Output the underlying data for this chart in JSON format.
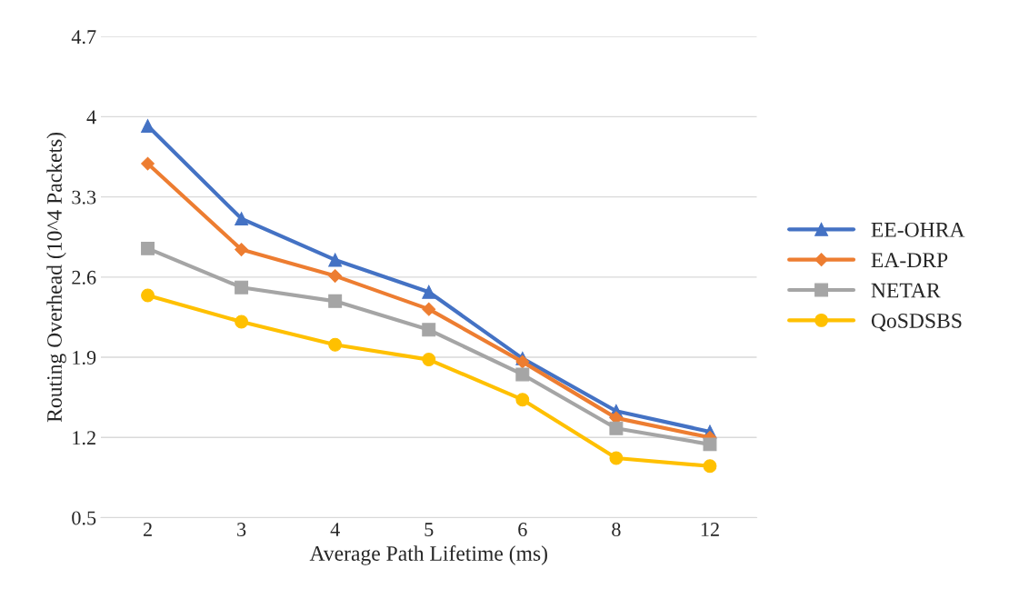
{
  "chart_data": {
    "type": "line",
    "xlabel": "Average Path Lifetime (ms)",
    "ylabel": "Routing Overhead (10^4 Packets)",
    "categories": [
      "2",
      "3",
      "4",
      "5",
      "6",
      "8",
      "12"
    ],
    "series": [
      {
        "name": "EE-OHRA",
        "color": "#4472c4",
        "marker": "triangle",
        "values": [
          3.92,
          3.11,
          2.75,
          2.47,
          1.89,
          1.43,
          1.25
        ]
      },
      {
        "name": "EA-DRP",
        "color": "#ed7d31",
        "marker": "diamond",
        "values": [
          3.59,
          2.84,
          2.61,
          2.32,
          1.86,
          1.37,
          1.2
        ]
      },
      {
        "name": "NETAR",
        "color": "#a5a5a5",
        "marker": "square",
        "values": [
          2.85,
          2.51,
          2.39,
          2.14,
          1.75,
          1.28,
          1.14
        ]
      },
      {
        "name": "QoSDSBS",
        "color": "#ffc000",
        "marker": "circle",
        "values": [
          2.44,
          2.21,
          2.01,
          1.88,
          1.53,
          1.02,
          0.95
        ]
      }
    ],
    "ylim": [
      0.5,
      4.7
    ],
    "yticks": [
      0.5,
      1.2,
      1.9,
      2.6,
      3.3,
      4,
      4.7
    ],
    "grid": "y",
    "legend": "right",
    "line_style": "solid"
  }
}
